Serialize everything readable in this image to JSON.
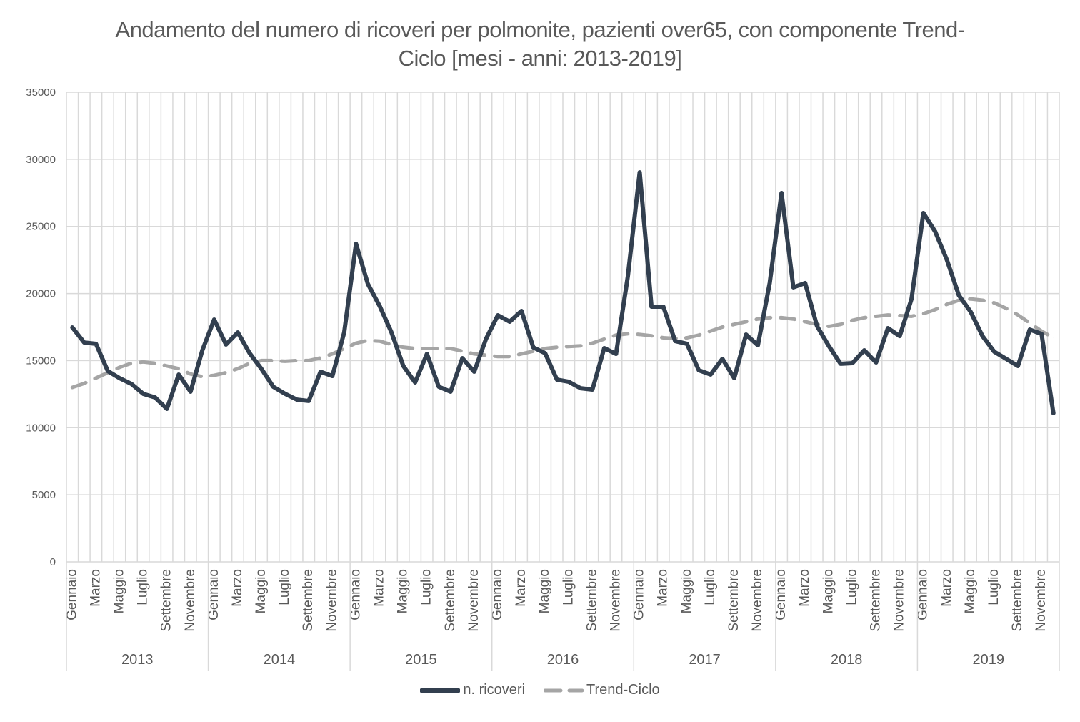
{
  "chart_data": {
    "type": "line",
    "title_line1": "Andamento del numero di ricoveri per polmonite, pazienti over65, con componente Trend-",
    "title_line2": "Ciclo  [mesi - anni: 2013-2019]",
    "years": [
      "2013",
      "2014",
      "2015",
      "2016",
      "2017",
      "2018",
      "2019"
    ],
    "month_labels": [
      "Gennaio",
      "",
      "Marzo",
      "",
      "Maggio",
      "",
      "Luglio",
      "",
      "Settembre",
      "",
      "Novembre",
      ""
    ],
    "ylim": [
      0,
      35000
    ],
    "yticks": [
      "0",
      "5000",
      "10000",
      "15000",
      "20000",
      "25000",
      "30000",
      "35000"
    ],
    "grid": true,
    "legend_position": "bottom",
    "series": [
      {
        "name": "n. ricoveri",
        "color": "#323f4f",
        "style": "solid",
        "values": [
          17470,
          16350,
          16250,
          14220,
          13690,
          13260,
          12520,
          12250,
          11400,
          13960,
          12680,
          15770,
          18060,
          16200,
          17100,
          15550,
          14380,
          13050,
          12520,
          12090,
          11990,
          14170,
          13850,
          17100,
          23700,
          20720,
          19070,
          17100,
          14600,
          13370,
          15500,
          13050,
          12680,
          15180,
          14170,
          16620,
          18380,
          17900,
          18700,
          15980,
          15550,
          13580,
          13420,
          12940,
          12840,
          15930,
          15500,
          21300,
          29030,
          19020,
          19020,
          16460,
          16250,
          14280,
          13960,
          15130,
          13690,
          16940,
          16140,
          20780,
          27490,
          20460,
          20780,
          17580,
          16090,
          14760,
          14810,
          15770,
          14860,
          17420,
          16830,
          19600,
          26000,
          24610,
          22480,
          19870,
          18640,
          16830,
          15660,
          15130,
          14600,
          17310,
          16990,
          11080
        ]
      },
      {
        "name": "Trend-Ciclo",
        "color": "#a5a5a5",
        "style": "dashed",
        "values": [
          13000,
          13300,
          13700,
          14100,
          14500,
          14800,
          14900,
          14800,
          14600,
          14400,
          14000,
          13800,
          13900,
          14100,
          14400,
          14800,
          15000,
          15000,
          14950,
          15000,
          15000,
          15200,
          15500,
          15900,
          16300,
          16500,
          16450,
          16200,
          16000,
          15900,
          15900,
          15900,
          15900,
          15700,
          15500,
          15400,
          15300,
          15300,
          15500,
          15700,
          15900,
          16000,
          16050,
          16100,
          16300,
          16600,
          16900,
          17000,
          16950,
          16850,
          16700,
          16650,
          16700,
          16900,
          17200,
          17500,
          17700,
          17900,
          18100,
          18200,
          18200,
          18100,
          17900,
          17700,
          17550,
          17700,
          18000,
          18200,
          18300,
          18400,
          18350,
          18300,
          18500,
          18800,
          19200,
          19500,
          19600,
          19500,
          19300,
          18900,
          18400,
          17800,
          17200,
          16700
        ]
      }
    ]
  }
}
